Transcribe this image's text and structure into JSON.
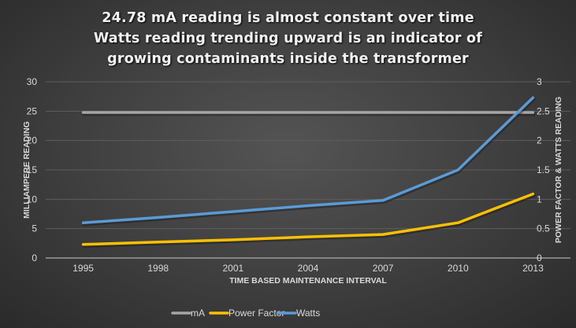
{
  "chart_data": {
    "type": "line",
    "title_lines": [
      "24.78 mA reading is almost constant over time",
      "Watts reading trending upward is an indicator of",
      "growing contaminants inside the transformer"
    ],
    "xlabel": "TIME BASED MAINTENANCE INTERVAL",
    "ylabel": "MILLIAMPERE READING",
    "y2label": "POWER FACTOR & WATTS READING",
    "categories": [
      "1995",
      "1998",
      "2001",
      "2004",
      "2007",
      "2010",
      "2013"
    ],
    "ylim": [
      0,
      30
    ],
    "yticks": [
      "0",
      "5",
      "10",
      "15",
      "20",
      "25",
      "30"
    ],
    "y2lim": [
      0,
      3
    ],
    "y2ticks": [
      "0",
      "0.5",
      "1",
      "1.5",
      "2",
      "2.5",
      "3"
    ],
    "grid": true,
    "legend_position": "bottom",
    "series": [
      {
        "name": "mA",
        "axis": "left",
        "color": "#a5a5a5",
        "values": [
          24.78,
          24.78,
          24.78,
          24.78,
          24.78,
          24.78,
          24.78
        ]
      },
      {
        "name": "Power Factor",
        "axis": "right",
        "color": "#ffc000",
        "values": [
          0.23,
          0.27,
          0.31,
          0.36,
          0.4,
          0.6,
          1.09
        ]
      },
      {
        "name": "Watts",
        "axis": "right",
        "color": "#5b9bd5",
        "values": [
          0.6,
          0.69,
          0.79,
          0.89,
          0.98,
          1.5,
          2.73
        ]
      }
    ]
  }
}
